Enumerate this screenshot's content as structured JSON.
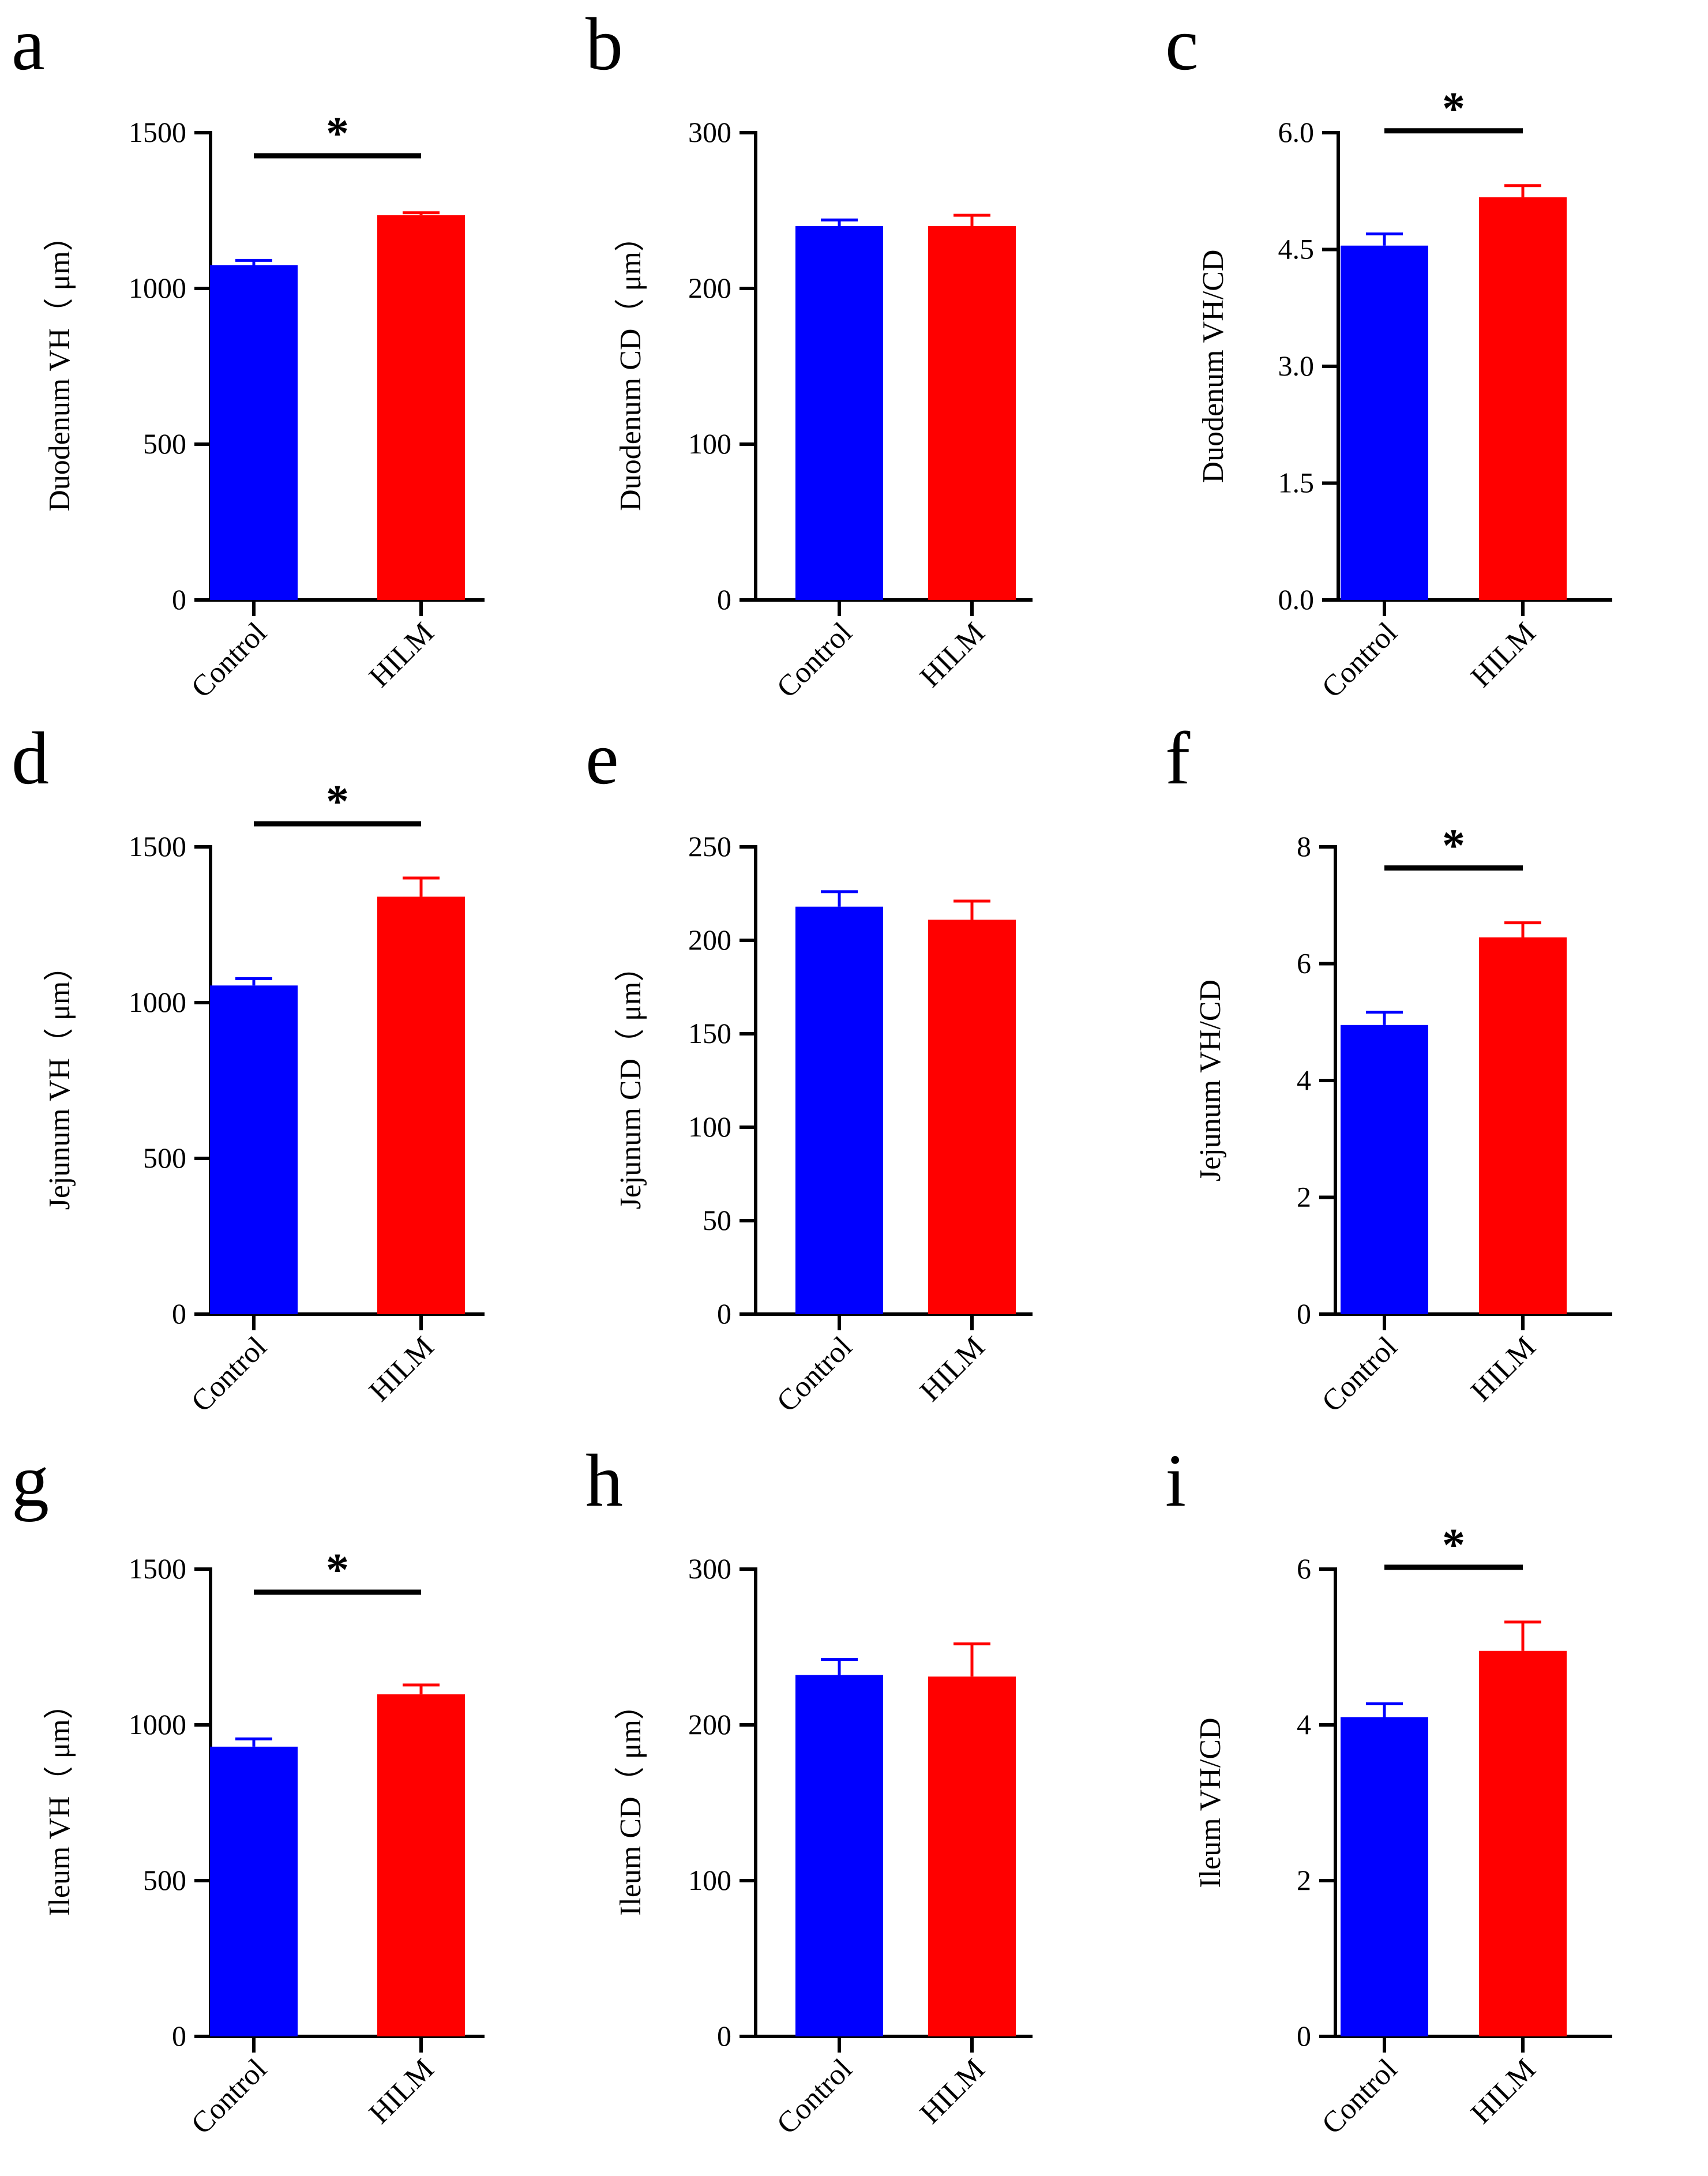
{
  "colors": {
    "control": "#0000ff",
    "hlm": "#ff0000",
    "axis": "#000000"
  },
  "chart_data": [
    {
      "panel": "a",
      "type": "bar",
      "categories": [
        "Control",
        "HILM"
      ],
      "values": [
        1075,
        1235
      ],
      "errors": [
        15,
        8
      ],
      "ylabel": "Duodenum VH（ μm）",
      "ylim": [
        0,
        1500
      ],
      "yticks": [
        "0",
        "500",
        "1000",
        "1500"
      ],
      "significance": "*"
    },
    {
      "panel": "b",
      "type": "bar",
      "categories": [
        "Control",
        "HILM"
      ],
      "values": [
        240,
        240
      ],
      "errors": [
        4,
        7
      ],
      "ylabel": "Duodenum CD（ μm）",
      "ylim": [
        0,
        300
      ],
      "yticks": [
        "0",
        "100",
        "200",
        "300"
      ],
      "significance": ""
    },
    {
      "panel": "c",
      "type": "bar",
      "categories": [
        "Control",
        "HILM"
      ],
      "values": [
        4.55,
        5.17
      ],
      "errors": [
        0.15,
        0.15
      ],
      "ylabel": "Duodenum VH/CD",
      "ylim": [
        0,
        6
      ],
      "yticks": [
        "0.0",
        "1.5",
        "3.0",
        "4.5",
        "6.0"
      ],
      "significance": "*"
    },
    {
      "panel": "d",
      "type": "bar",
      "categories": [
        "Control",
        "HILM"
      ],
      "values": [
        1055,
        1340
      ],
      "errors": [
        22,
        60
      ],
      "ylabel": "Jejunum VH（ μm）",
      "ylim": [
        0,
        1500
      ],
      "yticks": [
        "0",
        "500",
        "1000",
        "1500"
      ],
      "significance": "*"
    },
    {
      "panel": "e",
      "type": "bar",
      "categories": [
        "Control",
        "HILM"
      ],
      "values": [
        218,
        211
      ],
      "errors": [
        8,
        10
      ],
      "ylabel": "Jejunum CD（ μm）",
      "ylim": [
        0,
        250
      ],
      "yticks": [
        "0",
        "50",
        "100",
        "150",
        "200",
        "250"
      ],
      "significance": ""
    },
    {
      "panel": "f",
      "type": "bar",
      "categories": [
        "Control",
        "HILM"
      ],
      "values": [
        4.95,
        6.45
      ],
      "errors": [
        0.22,
        0.25
      ],
      "ylabel": "Jejunum  VH/CD",
      "ylim": [
        0,
        8
      ],
      "yticks": [
        "0",
        "2",
        "4",
        "6",
        "8"
      ],
      "significance": "*"
    },
    {
      "panel": "g",
      "type": "bar",
      "categories": [
        "Control",
        "HILM"
      ],
      "values": [
        930,
        1098
      ],
      "errors": [
        25,
        30
      ],
      "ylabel": "Ileum VH（ μm）",
      "ylim": [
        0,
        1500
      ],
      "yticks": [
        "0",
        "500",
        "1000",
        "1500"
      ],
      "significance": "*"
    },
    {
      "panel": "h",
      "type": "bar",
      "categories": [
        "Control",
        "HILM"
      ],
      "values": [
        232,
        231
      ],
      "errors": [
        10,
        21
      ],
      "ylabel": "Ileum CD（ μm）",
      "ylim": [
        0,
        300
      ],
      "yticks": [
        "0",
        "100",
        "200",
        "300"
      ],
      "significance": ""
    },
    {
      "panel": "i",
      "type": "bar",
      "categories": [
        "Control",
        "HILM"
      ],
      "values": [
        4.1,
        4.95
      ],
      "errors": [
        0.17,
        0.37
      ],
      "ylabel": "Ileum VH/CD",
      "ylim": [
        0,
        6
      ],
      "yticks": [
        "0",
        "2",
        "4",
        "6"
      ],
      "significance": "*"
    }
  ]
}
